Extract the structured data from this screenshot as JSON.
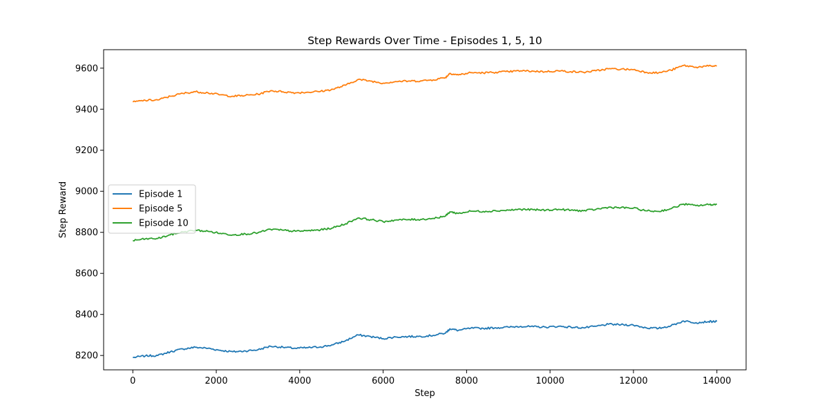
{
  "chart_data": {
    "type": "line",
    "title": "Step Rewards Over Time - Episodes 1, 5, 10",
    "xlabel": "Step",
    "ylabel": "Step Reward",
    "xlim": [
      -700,
      14700
    ],
    "ylim": [
      8130,
      9690
    ],
    "xticks": [
      0,
      2000,
      4000,
      6000,
      8000,
      10000,
      12000,
      14000
    ],
    "yticks": [
      8200,
      8400,
      8600,
      8800,
      9000,
      9200,
      9400,
      9600
    ],
    "grid": false,
    "legend_position": "center-left",
    "x": [
      0,
      300,
      600,
      900,
      1200,
      1500,
      1800,
      2100,
      2400,
      2700,
      3000,
      3300,
      3600,
      3900,
      4200,
      4500,
      4800,
      5100,
      5400,
      5700,
      6000,
      6300,
      6600,
      6900,
      7200,
      7500,
      7600,
      7800,
      8100,
      8400,
      8700,
      9000,
      9300,
      9600,
      9900,
      10200,
      10500,
      10800,
      11100,
      11400,
      11700,
      12000,
      12300,
      12600,
      12900,
      13200,
      13500,
      13800,
      14000
    ],
    "series": [
      {
        "name": "Episode 1",
        "color": "#1f77b4",
        "values": [
          8190,
          8198,
          8200,
          8218,
          8232,
          8240,
          8235,
          8225,
          8218,
          8222,
          8228,
          8245,
          8240,
          8235,
          8238,
          8242,
          8252,
          8272,
          8300,
          8292,
          8282,
          8290,
          8292,
          8293,
          8298,
          8310,
          8330,
          8322,
          8333,
          8332,
          8335,
          8338,
          8342,
          8340,
          8338,
          8342,
          8338,
          8335,
          8342,
          8352,
          8350,
          8348,
          8335,
          8332,
          8345,
          8368,
          8360,
          8365,
          8366
        ]
      },
      {
        "name": "Episode 5",
        "color": "#ff7f0e",
        "values": [
          9435,
          9443,
          9445,
          9463,
          9477,
          9485,
          9480,
          9470,
          9463,
          9467,
          9473,
          9490,
          9485,
          9480,
          9483,
          9487,
          9497,
          9517,
          9545,
          9537,
          9527,
          9535,
          9537,
          9538,
          9543,
          9555,
          9575,
          9567,
          9578,
          9577,
          9580,
          9583,
          9587,
          9585,
          9583,
          9587,
          9583,
          9580,
          9587,
          9597,
          9595,
          9593,
          9580,
          9577,
          9590,
          9613,
          9605,
          9610,
          9611
        ]
      },
      {
        "name": "Episode 10",
        "color": "#2ca02c",
        "values": [
          8760,
          8768,
          8770,
          8788,
          8802,
          8810,
          8805,
          8795,
          8788,
          8792,
          8798,
          8815,
          8810,
          8805,
          8808,
          8812,
          8822,
          8842,
          8870,
          8862,
          8852,
          8860,
          8862,
          8863,
          8868,
          8880,
          8900,
          8892,
          8903,
          8902,
          8905,
          8908,
          8912,
          8910,
          8908,
          8912,
          8908,
          8905,
          8912,
          8922,
          8920,
          8918,
          8905,
          8902,
          8915,
          8938,
          8930,
          8935,
          8936
        ]
      }
    ]
  }
}
